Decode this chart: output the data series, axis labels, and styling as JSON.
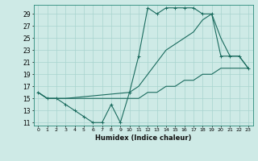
{
  "xlabel": "Humidex (Indice chaleur)",
  "bg_color": "#ceeae6",
  "grid_color": "#a8d4ce",
  "line_color": "#1a6b5e",
  "xlim": [
    -0.5,
    23.5
  ],
  "ylim": [
    10.5,
    30.5
  ],
  "yticks": [
    11,
    13,
    15,
    17,
    19,
    21,
    23,
    25,
    27,
    29
  ],
  "xticks": [
    0,
    1,
    2,
    3,
    4,
    5,
    6,
    7,
    8,
    9,
    10,
    11,
    12,
    13,
    14,
    15,
    16,
    17,
    18,
    19,
    20,
    21,
    22,
    23
  ],
  "series": [
    {
      "x": [
        0,
        1,
        2,
        3,
        4,
        5,
        6,
        7,
        8,
        9,
        10,
        11,
        12,
        13,
        14,
        15,
        16,
        17,
        18,
        19,
        20,
        21,
        22,
        23
      ],
      "y": [
        16,
        15,
        15,
        14,
        13,
        12,
        11,
        11,
        14,
        11,
        16,
        22,
        30,
        29,
        30,
        30,
        30,
        30,
        29,
        29,
        22,
        22,
        22,
        20
      ],
      "marker": true
    },
    {
      "x": [
        0,
        1,
        2,
        3,
        10,
        11,
        12,
        13,
        14,
        15,
        16,
        17,
        18,
        19,
        20,
        21,
        22,
        23
      ],
      "y": [
        16,
        15,
        15,
        15,
        16,
        17,
        19,
        21,
        23,
        24,
        25,
        26,
        28,
        29,
        25,
        22,
        22,
        20
      ],
      "marker": false
    },
    {
      "x": [
        0,
        1,
        2,
        3,
        10,
        11,
        12,
        13,
        14,
        15,
        16,
        17,
        18,
        19,
        20,
        21,
        22,
        23
      ],
      "y": [
        16,
        15,
        15,
        15,
        15,
        15,
        16,
        16,
        17,
        17,
        18,
        18,
        19,
        19,
        20,
        20,
        20,
        20
      ],
      "marker": false
    }
  ]
}
